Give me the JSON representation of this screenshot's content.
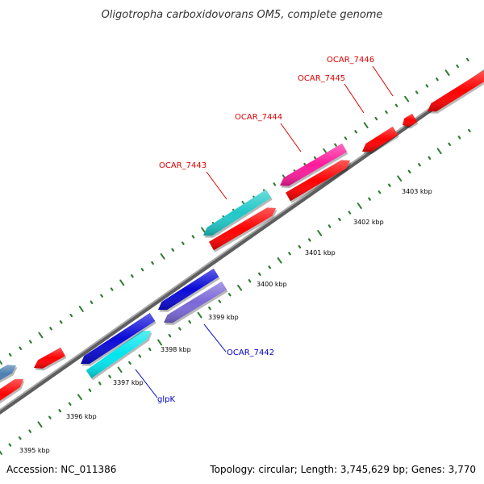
{
  "title": "Oligotropha carboxidovorans OM5, complete genome",
  "accession": "Accession: NC_011386",
  "topology": "Topology: circular; Length: 3,745,629 bp; Genes: 3,770",
  "colors": {
    "backbone": "#8a8a8a",
    "tick": "#2e7d32",
    "label_top": "#dd0000",
    "label_bottom": "#0000cc",
    "gene_red": "#ff0000",
    "gene_teal": "#20c8c8",
    "gene_magenta": "#ff1a9c",
    "gene_blue": "#0a0ad8",
    "gene_cyan": "#00e5ee",
    "gene_lavender": "#7b68d8",
    "gene_steel": "#4a7fb0"
  },
  "scale_labels": [
    "3395 kbp",
    "3396 kbp",
    "3397 kbp",
    "3398 kbp",
    "3399 kbp",
    "3400 kbp",
    "3401 kbp",
    "3402 kbp",
    "3403 kbp"
  ],
  "gene_labels": {
    "ocar_7443": "OCAR_7443",
    "ocar_7444": "OCAR_7444",
    "ocar_7445": "OCAR_7445",
    "ocar_7446": "OCAR_7446",
    "ocar_7442": "OCAR_7442",
    "glpk": "glpK"
  }
}
